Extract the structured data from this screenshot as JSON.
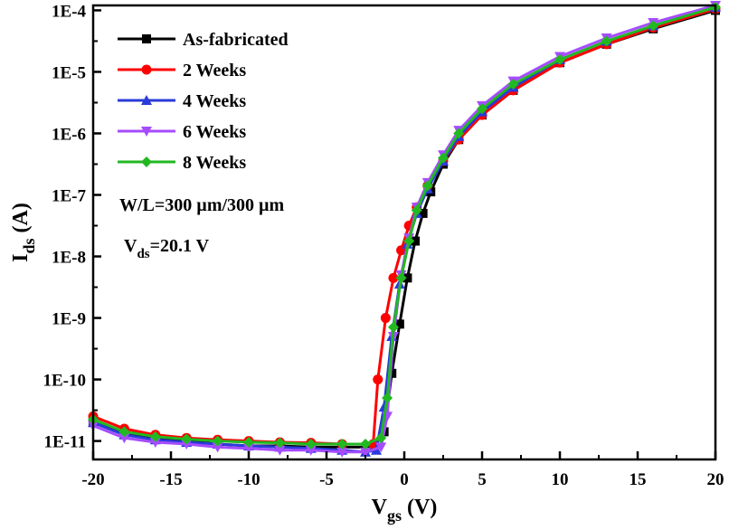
{
  "chart_data": {
    "type": "line",
    "xlabel_main": "V",
    "xlabel_sub": "gs",
    "xlabel_unit": " (V)",
    "ylabel_main": "I",
    "ylabel_sub": "ds",
    "ylabel_unit": " (A)",
    "xlim": [
      -20,
      20
    ],
    "ylim_log10": [
      -11.3,
      -3.92
    ],
    "y_scale": "log",
    "grid": false,
    "legend_position": "top-left",
    "x_ticks": [
      -20,
      -15,
      -10,
      -5,
      0,
      5,
      10,
      15,
      20
    ],
    "x_tick_labels": [
      "-20",
      "-15",
      "-10",
      "-5",
      "0",
      "5",
      "10",
      "15",
      "20"
    ],
    "y_ticks_log10": [
      -11,
      -10,
      -9,
      -8,
      -7,
      -6,
      -5,
      -4
    ],
    "y_tick_labels": [
      "1E-11",
      "1E-10",
      "1E-9",
      "1E-8",
      "1E-7",
      "1E-6",
      "1E-5",
      "1E-4"
    ],
    "annotations": {
      "wl": "W/L=300 µm/300 µm",
      "vds_main": "V",
      "vds_sub": "ds",
      "vds_value": "=20.1 V"
    },
    "series": [
      {
        "name": "As-fabricated",
        "color": "#000000",
        "marker": "square",
        "x": [
          -20,
          -18,
          -16,
          -14,
          -12,
          -10,
          -8,
          -6,
          -4,
          -2,
          -1.3,
          -0.8,
          -0.3,
          0.2,
          0.7,
          1.2,
          1.7,
          2.5,
          3.5,
          5,
          7,
          10,
          13,
          16,
          20
        ],
        "log10_y": [
          -10.7,
          -10.88,
          -10.95,
          -11.0,
          -11.05,
          -11.08,
          -11.08,
          -11.1,
          -11.1,
          -11.1,
          -10.85,
          -9.9,
          -9.1,
          -8.35,
          -7.75,
          -7.3,
          -6.95,
          -6.5,
          -6.1,
          -5.7,
          -5.3,
          -4.85,
          -4.55,
          -4.3,
          -4.0
        ]
      },
      {
        "name": "2 Weeks",
        "color": "#ff0000",
        "marker": "circle",
        "x": [
          -20,
          -18,
          -16,
          -14,
          -12,
          -10,
          -8,
          -6,
          -4,
          -2,
          -1.7,
          -1.2,
          -0.7,
          -0.2,
          0.3,
          0.8,
          1.5,
          2.5,
          3.5,
          5,
          7,
          10,
          13,
          16,
          20
        ],
        "log10_y": [
          -10.6,
          -10.8,
          -10.9,
          -10.95,
          -10.98,
          -11.0,
          -11.02,
          -11.03,
          -11.05,
          -11.05,
          -10.0,
          -9.0,
          -8.35,
          -7.9,
          -7.5,
          -7.2,
          -6.85,
          -6.45,
          -6.1,
          -5.7,
          -5.3,
          -4.85,
          -4.55,
          -4.28,
          -3.98
        ]
      },
      {
        "name": "4 Weeks",
        "color": "#2b3bd9",
        "marker": "triangle-up",
        "x": [
          -20,
          -18,
          -16,
          -14,
          -12,
          -10,
          -8,
          -6,
          -4,
          -2.5,
          -1.8,
          -1.3,
          -0.8,
          -0.3,
          0.2,
          0.8,
          1.5,
          2.5,
          3.5,
          5,
          7,
          10,
          13,
          16,
          20
        ],
        "log10_y": [
          -10.7,
          -10.9,
          -10.98,
          -11.02,
          -11.05,
          -11.08,
          -11.1,
          -11.12,
          -11.15,
          -11.18,
          -11.15,
          -10.45,
          -9.3,
          -8.45,
          -7.8,
          -7.3,
          -6.9,
          -6.45,
          -6.05,
          -5.65,
          -5.25,
          -4.8,
          -4.5,
          -4.25,
          -3.95
        ]
      },
      {
        "name": "6 Weeks",
        "color": "#a64cff",
        "marker": "triangle-down",
        "x": [
          -20,
          -18,
          -16,
          -14,
          -12,
          -10,
          -8,
          -6,
          -4,
          -2.5,
          -1.5,
          -1.1,
          -0.7,
          -0.2,
          0.3,
          0.8,
          1.5,
          2.5,
          3.5,
          5,
          7,
          10,
          13,
          16,
          20
        ],
        "log10_y": [
          -10.75,
          -10.95,
          -11.02,
          -11.05,
          -11.1,
          -11.12,
          -11.15,
          -11.15,
          -11.18,
          -11.18,
          -11.1,
          -10.6,
          -9.3,
          -8.3,
          -7.7,
          -7.2,
          -6.8,
          -6.35,
          -5.95,
          -5.55,
          -5.15,
          -4.75,
          -4.45,
          -4.2,
          -3.92
        ]
      },
      {
        "name": "8 Weeks",
        "color": "#22b822",
        "marker": "diamond",
        "x": [
          -20,
          -18,
          -16,
          -14,
          -12,
          -10,
          -8,
          -6,
          -4,
          -2.5,
          -1.5,
          -1.1,
          -0.7,
          -0.2,
          0.3,
          0.8,
          1.5,
          2.5,
          3.5,
          5,
          7,
          10,
          13,
          16,
          20
        ],
        "log10_y": [
          -10.65,
          -10.85,
          -10.93,
          -10.97,
          -11.0,
          -11.02,
          -11.03,
          -11.05,
          -11.05,
          -11.05,
          -10.95,
          -10.3,
          -9.15,
          -8.35,
          -7.75,
          -7.25,
          -6.85,
          -6.4,
          -6.0,
          -5.6,
          -5.2,
          -4.8,
          -4.5,
          -4.25,
          -3.95
        ]
      }
    ]
  }
}
